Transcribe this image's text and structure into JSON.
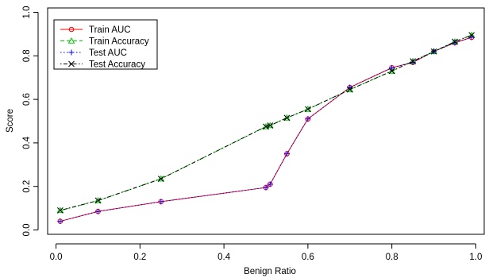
{
  "chart_data": {
    "type": "line",
    "xlabel": "Benign Ratio",
    "ylabel": "Score",
    "xlim": [
      -0.02,
      1.02
    ],
    "ylim": [
      -0.02,
      1.02
    ],
    "x_ticks": [
      "0.0",
      "0.2",
      "0.4",
      "0.6",
      "0.8",
      "1.0"
    ],
    "y_ticks": [
      "0.0",
      "0.2",
      "0.4",
      "0.6",
      "0.8",
      "1.0"
    ],
    "grid": false,
    "legend_position": "top-left",
    "x": [
      0.01,
      0.1,
      0.25,
      0.5,
      0.51,
      0.55,
      0.6,
      0.7,
      0.8,
      0.85,
      0.9,
      0.95,
      0.99
    ],
    "series": [
      {
        "name": "Train AUC",
        "color": "#ff0000",
        "marker": "circle",
        "line_style": "solid",
        "values": [
          0.04,
          0.085,
          0.13,
          0.195,
          0.21,
          0.35,
          0.51,
          0.655,
          0.745,
          0.77,
          0.82,
          0.86,
          0.885
        ]
      },
      {
        "name": "Train Accuracy",
        "color": "#00cd00",
        "marker": "triangle",
        "line_style": "dashed",
        "values": [
          0.09,
          0.135,
          0.235,
          0.475,
          0.48,
          0.515,
          0.555,
          0.645,
          0.73,
          0.775,
          0.82,
          0.865,
          0.895
        ]
      },
      {
        "name": "Test AUC",
        "color": "#0000ff",
        "marker": "plus",
        "line_style": "dotted",
        "values": [
          0.04,
          0.085,
          0.13,
          0.195,
          0.21,
          0.35,
          0.51,
          0.655,
          0.745,
          0.77,
          0.82,
          0.86,
          0.885
        ]
      },
      {
        "name": "Test Accuracy",
        "color": "#000000",
        "marker": "cross",
        "line_style": "dotdash",
        "values": [
          0.09,
          0.135,
          0.235,
          0.475,
          0.48,
          0.515,
          0.555,
          0.645,
          0.73,
          0.775,
          0.82,
          0.865,
          0.895
        ]
      }
    ]
  }
}
